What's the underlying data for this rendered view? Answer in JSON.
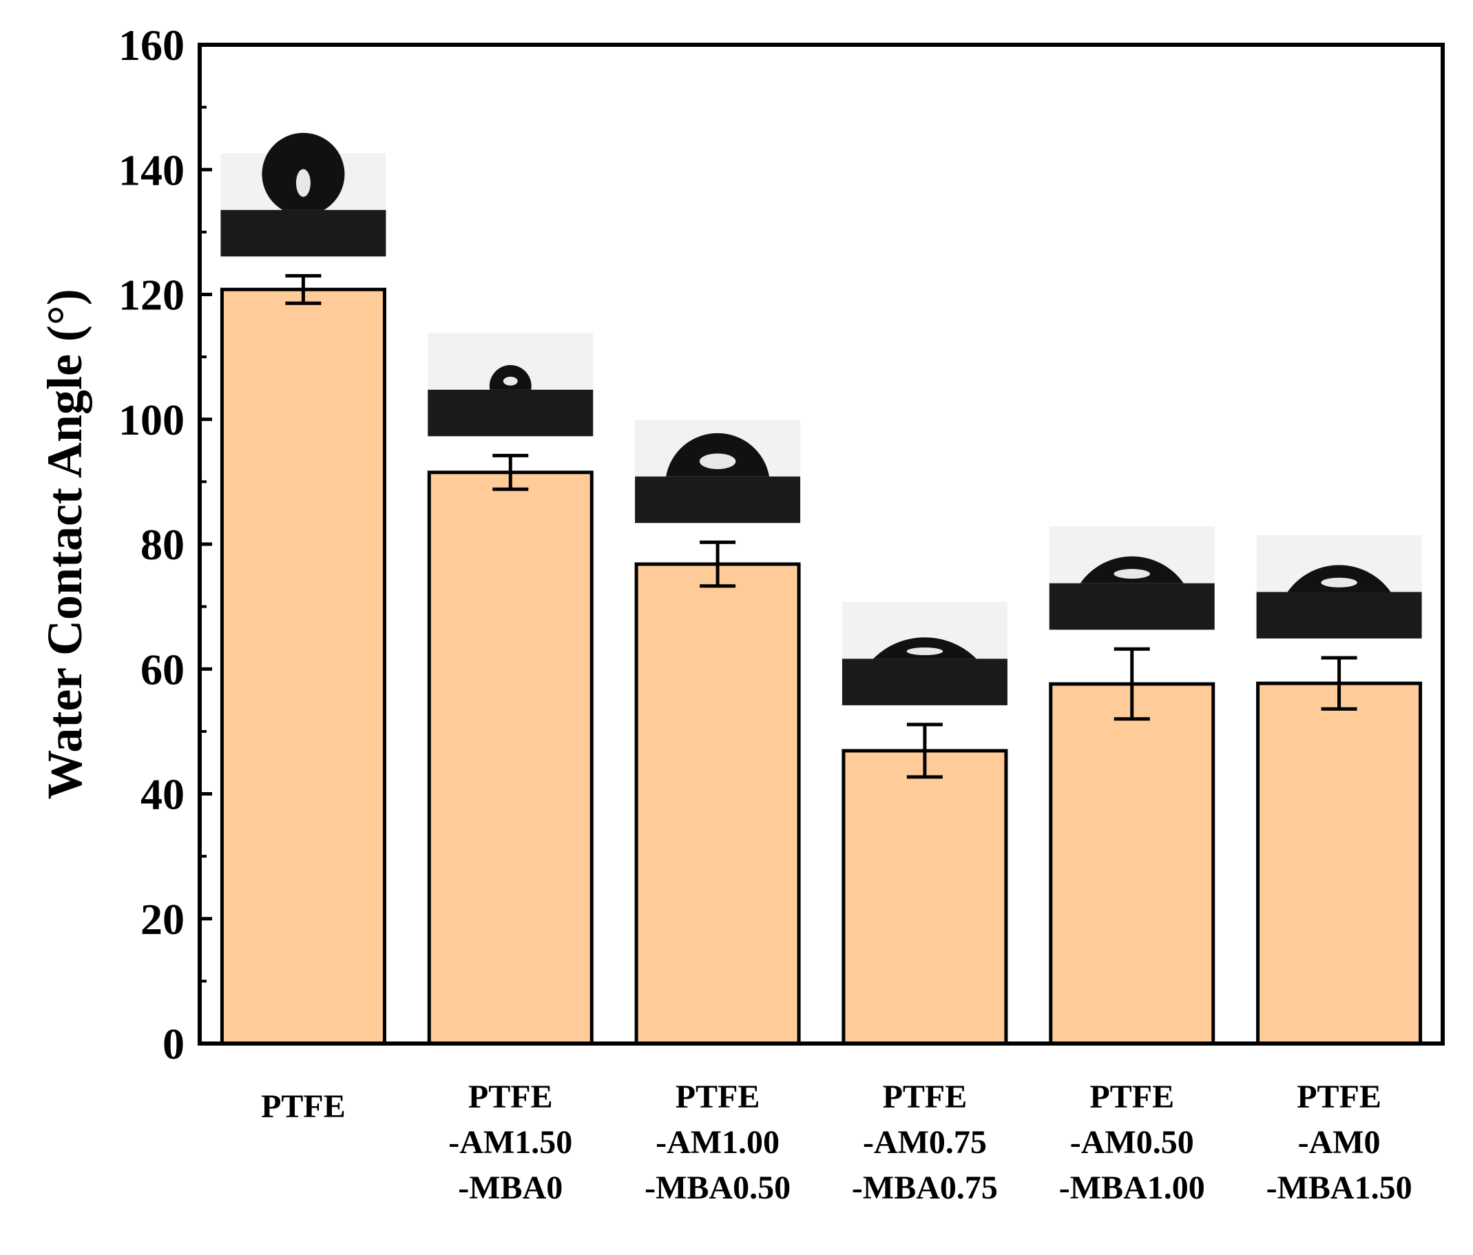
{
  "chart_data": {
    "type": "bar",
    "title": "",
    "xlabel": "",
    "ylabel": "Water Contact Angle (°)",
    "ylim": [
      0,
      160
    ],
    "yticks": [
      0,
      20,
      40,
      60,
      80,
      100,
      120,
      140,
      160
    ],
    "yticklabels": [
      "0",
      "20",
      "40",
      "60",
      "80",
      "100",
      "120",
      "140",
      "160"
    ],
    "categories": [
      [
        "PTFE"
      ],
      [
        "PTFE",
        "-AM1.50",
        "-MBA0"
      ],
      [
        "PTFE",
        "-AM1.00",
        "-MBA0.50"
      ],
      [
        "PTFE",
        "-AM0.75",
        "-MBA0.75"
      ],
      [
        "PTFE",
        "-AM0.50",
        "-MBA1.00"
      ],
      [
        "PTFE",
        "-AM0",
        "-MBA1.50"
      ]
    ],
    "values": [
      120.8,
      91.5,
      76.8,
      46.9,
      57.6,
      57.7
    ],
    "errors": [
      2.2,
      2.7,
      3.5,
      4.2,
      5.6,
      4.1
    ],
    "bar_color": "#ffcc99",
    "edge_color": "#000000",
    "insets": [
      {
        "kind": "droplet-image",
        "contact_angle_deg": 150
      },
      {
        "kind": "droplet-image",
        "contact_angle_deg": 100
      },
      {
        "kind": "droplet-image",
        "contact_angle_deg": 80
      },
      {
        "kind": "droplet-image",
        "contact_angle_deg": 45
      },
      {
        "kind": "droplet-image",
        "contact_angle_deg": 55
      },
      {
        "kind": "droplet-image",
        "contact_angle_deg": 55
      }
    ]
  }
}
